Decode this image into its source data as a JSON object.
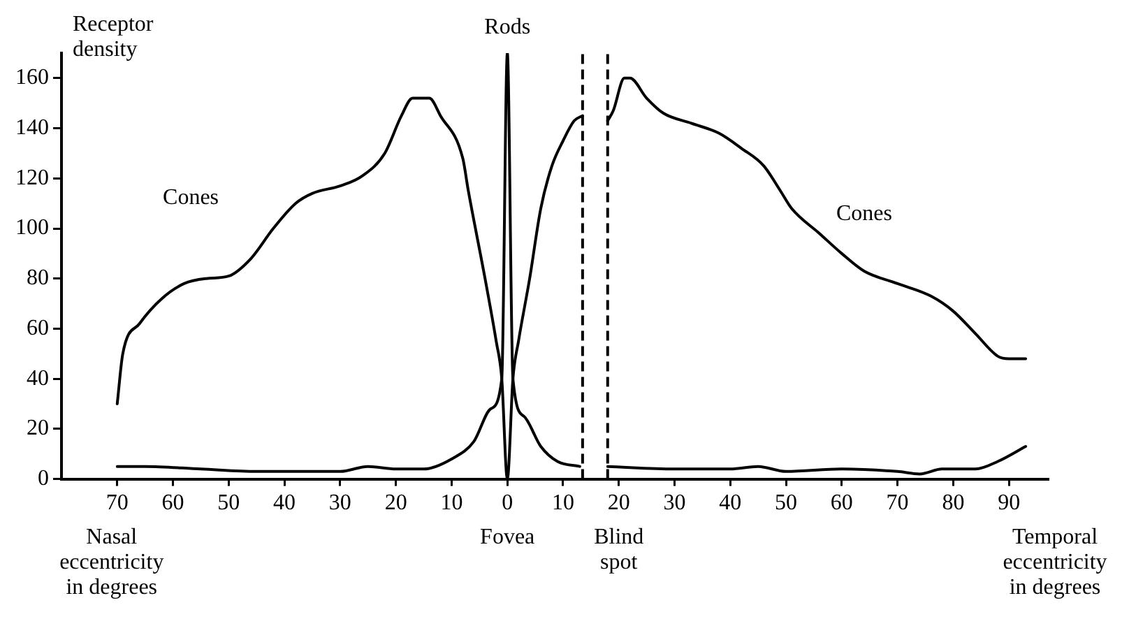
{
  "chart_data": {
    "type": "line",
    "ylabel": "Receptor density",
    "xlim": [
      -80,
      97
    ],
    "ylim": [
      0,
      170
    ],
    "xticks": [
      {
        "value": -70,
        "label": "70"
      },
      {
        "value": -60,
        "label": "60"
      },
      {
        "value": -50,
        "label": "50"
      },
      {
        "value": -40,
        "label": "40"
      },
      {
        "value": -30,
        "label": "30"
      },
      {
        "value": -20,
        "label": "20"
      },
      {
        "value": -10,
        "label": "10"
      },
      0,
      10,
      20,
      30,
      40,
      50,
      60,
      70,
      80,
      90
    ],
    "yticks": [
      0,
      20,
      40,
      60,
      80,
      100,
      120,
      140,
      160
    ],
    "grid": false,
    "legend": false,
    "marker": "none",
    "line_style": "solid",
    "series": [
      {
        "name": "Cones",
        "color": "#000000",
        "x": [
          -70,
          -69,
          -66,
          -62,
          -58,
          -54,
          -50,
          -46,
          -42,
          -38,
          -35,
          -30,
          -26,
          -22,
          -19,
          -17,
          -14,
          -12,
          -8,
          -7,
          -4,
          -2,
          -1,
          0,
          1,
          2,
          4,
          6,
          8,
          10,
          12,
          13.5
        ],
        "values": [
          30,
          50,
          62,
          72,
          78,
          80,
          81,
          88,
          100,
          110,
          114,
          117,
          121,
          130,
          145,
          152,
          152,
          145,
          128,
          115,
          80,
          55,
          40,
          0,
          40,
          55,
          80,
          108,
          125,
          135,
          143,
          145
        ]
      },
      {
        "name": "Cones",
        "color": "#000000",
        "x": [
          18,
          19,
          21,
          22,
          25,
          28,
          33,
          38,
          42,
          46,
          49,
          51,
          56,
          60,
          64,
          70,
          76,
          80,
          84,
          88,
          90,
          93
        ],
        "values": [
          143,
          147,
          160,
          160,
          152,
          146,
          142,
          138,
          132,
          125,
          115,
          108,
          98,
          90,
          83,
          78,
          73,
          67,
          58,
          49,
          48,
          48
        ]
      },
      {
        "name": "Rods",
        "color": "#000000",
        "x": [
          -70,
          -65,
          -55,
          -45,
          -35,
          -30,
          -25,
          -20,
          -15,
          -10,
          -6,
          -3,
          -1,
          0,
          1,
          3,
          6,
          9,
          13,
          16,
          18,
          30,
          40,
          45,
          50,
          60,
          70,
          74,
          78,
          84,
          88,
          93
        ],
        "values": [
          5,
          5,
          4,
          3,
          3,
          3,
          5,
          4,
          4,
          8,
          15,
          28,
          40,
          170,
          40,
          25,
          13,
          7,
          5,
          null,
          5,
          4,
          4,
          5,
          3,
          4,
          3,
          2,
          4,
          4,
          7,
          13
        ]
      }
    ],
    "ref_lines": [
      {
        "axis": "x",
        "value": 13.5,
        "line_style": "dashed",
        "color": "#000000"
      },
      {
        "axis": "x",
        "value": 18,
        "line_style": "dashed",
        "color": "#000000"
      }
    ],
    "annotations": [
      "Nasal eccentricity in degrees",
      "Fovea",
      "Blind spot",
      "Temporal eccentricity in degrees"
    ]
  }
}
